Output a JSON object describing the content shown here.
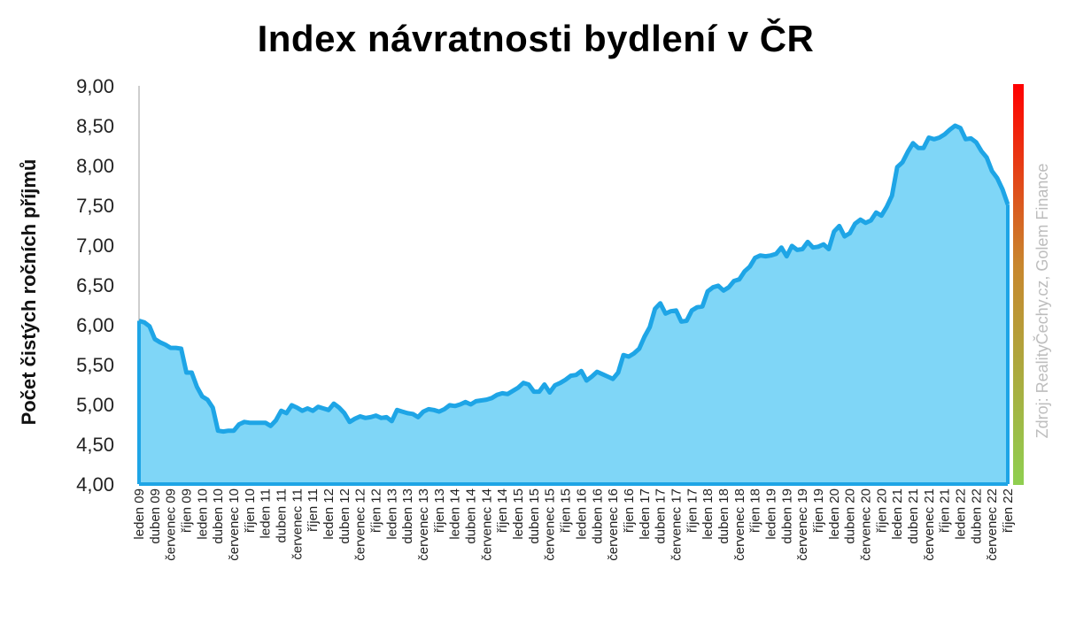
{
  "chart_data": {
    "type": "area",
    "title": "Index návratnosti bydlení v ČR",
    "ylabel": "Počet čistých ročních příjmů",
    "xlabel": "",
    "source": "Zdroj: RealityČechy.cz, Golem Finance",
    "ylim": [
      4.0,
      9.0
    ],
    "yticks": [
      "4,00",
      "4,50",
      "5,00",
      "5,50",
      "6,00",
      "6,50",
      "7,00",
      "7,50",
      "8,00",
      "8,50",
      "9,00"
    ],
    "grid": false,
    "legend": "none",
    "x_labels": [
      "leden 09",
      "duben 09",
      "červenec 09",
      "říjen 09",
      "leden 10",
      "duben 10",
      "červenec 10",
      "říjen 10",
      "leden 11",
      "duben 11",
      "červenec 11",
      "říjen 11",
      "leden 12",
      "duben 12",
      "červenec 12",
      "říjen 12",
      "leden 13",
      "duben 13",
      "červenec 13",
      "říjen 13",
      "leden 14",
      "duben 14",
      "červenec 14",
      "říjen 14",
      "leden 15",
      "duben 15",
      "červenec 15",
      "říjen 15",
      "leden 16",
      "duben 16",
      "červenec 16",
      "říjen 16",
      "leden 17",
      "duben 17",
      "červenec 17",
      "říjen 17",
      "leden 18",
      "duben 18",
      "červenec 18",
      "říjen 18",
      "leden 19",
      "duben 19",
      "červenec 19",
      "říjen 19",
      "leden 20",
      "duben 20",
      "červenec 20",
      "říjen 20",
      "leden 21",
      "duben 21",
      "červenec 21",
      "říjen 21",
      "leden 22",
      "duben 22",
      "červenec 22",
      "říjen 22"
    ],
    "series": [
      {
        "values": [
          6.05,
          6.03,
          5.98,
          5.82,
          5.78,
          5.75,
          5.71,
          5.71,
          5.7,
          5.4,
          5.4,
          5.22,
          5.1,
          5.06,
          4.96,
          4.67,
          4.66,
          4.67,
          4.67,
          4.75,
          4.78,
          4.77,
          4.77,
          4.77,
          4.77,
          4.73,
          4.8,
          4.92,
          4.89,
          4.99,
          4.96,
          4.92,
          4.95,
          4.92,
          4.97,
          4.95,
          4.93,
          5.01,
          4.96,
          4.89,
          4.78,
          4.82,
          4.85,
          4.83,
          4.84,
          4.86,
          4.83,
          4.84,
          4.79,
          4.93,
          4.91,
          4.89,
          4.88,
          4.84,
          4.91,
          4.94,
          4.93,
          4.91,
          4.94,
          4.99,
          4.98,
          5.0,
          5.03,
          5.0,
          5.04,
          5.05,
          5.06,
          5.08,
          5.12,
          5.14,
          5.13,
          5.17,
          5.21,
          5.27,
          5.25,
          5.16,
          5.16,
          5.25,
          5.15,
          5.24,
          5.27,
          5.31,
          5.36,
          5.37,
          5.42,
          5.3,
          5.35,
          5.41,
          5.38,
          5.35,
          5.32,
          5.4,
          5.62,
          5.6,
          5.64,
          5.7,
          5.85,
          5.97,
          6.2,
          6.27,
          6.14,
          6.17,
          6.18,
          6.04,
          6.05,
          6.18,
          6.22,
          6.23,
          6.42,
          6.47,
          6.49,
          6.43,
          6.47,
          6.55,
          6.57,
          6.67,
          6.73,
          6.84,
          6.87,
          6.86,
          6.87,
          6.89,
          6.97,
          6.86,
          6.99,
          6.94,
          6.95,
          7.04,
          6.97,
          6.98,
          7.01,
          6.95,
          7.17,
          7.24,
          7.11,
          7.15,
          7.27,
          7.32,
          7.28,
          7.31,
          7.41,
          7.37,
          7.48,
          7.62,
          7.98,
          8.04,
          8.17,
          8.28,
          8.22,
          8.22,
          8.35,
          8.33,
          8.35,
          8.39,
          8.45,
          8.5,
          8.47,
          8.33,
          8.34,
          8.29,
          8.18,
          8.1,
          7.93,
          7.84,
          7.7,
          7.51
        ]
      }
    ],
    "colors": {
      "area_fill": "#7fd6f7",
      "line": "#1ea5e6",
      "scale_bar_top": "#ff0000",
      "scale_bar_mid": "#c8862e",
      "scale_bar_bottom": "#8fcf50"
    }
  }
}
